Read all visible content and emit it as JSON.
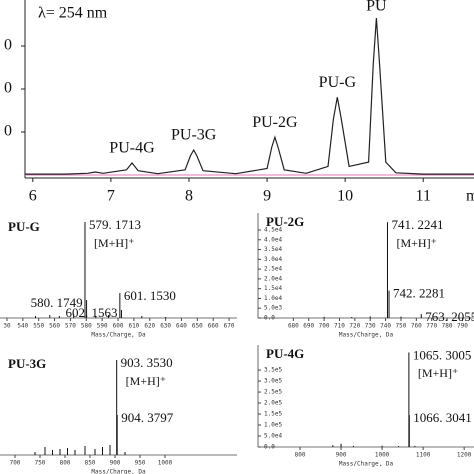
{
  "chart_data": [
    {
      "type": "line",
      "annotation": "λ= 254 nm",
      "x_label": "m",
      "x": [
        5.9,
        6.4,
        6.7,
        6.8,
        6.9,
        7.2,
        7.27,
        7.35,
        7.6,
        7.95,
        8.02,
        8.06,
        8.1,
        8.18,
        8.6,
        9.0,
        9.06,
        9.1,
        9.14,
        9.22,
        9.5,
        9.78,
        9.85,
        9.9,
        9.95,
        10.05,
        10.3,
        10.36,
        10.4,
        10.44,
        10.52,
        10.65,
        11.0,
        11.65
      ],
      "values": [
        2,
        2,
        4,
        7,
        4,
        12,
        28,
        10,
        3,
        12,
        45,
        58,
        45,
        10,
        3,
        15,
        65,
        88,
        65,
        12,
        4,
        20,
        130,
        181,
        130,
        20,
        30,
        260,
        365,
        260,
        30,
        5,
        2,
        2
      ],
      "color": "#222222",
      "baseline_color": "#e07ab8",
      "xlim": [
        5.9,
        11.65
      ],
      "ylim": [
        -7,
        407
      ],
      "xticks": [
        6,
        7,
        8,
        9,
        10,
        11
      ],
      "yticks": [
        {
          "value": 100,
          "label": "0"
        },
        {
          "value": 200,
          "label": "0"
        },
        {
          "value": 300,
          "label": "0"
        }
      ],
      "annotations": [
        {
          "text": "PU-4G",
          "x": 7.27
        },
        {
          "text": "PU-3G",
          "x": 8.06
        },
        {
          "text": "PU-2G",
          "x": 9.1
        },
        {
          "text": "PU-G",
          "x": 9.9
        },
        {
          "text": "PU",
          "x": 10.4
        }
      ]
    },
    {
      "type": "spectrum",
      "title": "PU-G",
      "annotation": "[M+H]⁺",
      "x_label": "Mass/Charge, Da",
      "color": "#111111",
      "x": [
        548,
        557,
        563,
        572,
        579.1713,
        580.1749,
        586,
        594,
        601.153,
        602.1563,
        615,
        630
      ],
      "values": [
        2,
        3,
        2,
        4,
        96,
        18,
        2,
        3,
        25,
        8,
        2,
        1
      ],
      "peak_labels": [
        null,
        null,
        null,
        null,
        "579. 1713",
        "580. 1749",
        null,
        null,
        "601. 1530",
        "602. 1563",
        null,
        null
      ],
      "xlim": [
        525.6,
        675
      ],
      "ylim": [
        0,
        100
      ],
      "xticks": [
        {
          "value": 530,
          "label": "30"
        },
        540,
        550,
        560,
        570,
        580,
        590,
        600,
        610,
        620,
        630,
        640,
        650,
        660,
        670
      ]
    },
    {
      "type": "spectrum",
      "title": "PU-2G",
      "annotation": "[M+H]⁺",
      "x_label": "Mass/Charge, Da",
      "color": "#111111",
      "x": [
        700,
        718,
        730,
        741.2241,
        742.2281,
        750,
        763.2055
      ],
      "values": [
        600,
        500,
        800,
        49000,
        14000,
        700,
        2000
      ],
      "peak_labels": [
        null,
        null,
        null,
        "741. 2241",
        "742. 2281",
        null,
        "763. 2055"
      ],
      "xlim": [
        657,
        797.5
      ],
      "ylim": [
        0,
        53700
      ],
      "xticks": [
        680,
        690,
        700,
        710,
        720,
        730,
        740,
        750,
        760,
        770,
        780,
        790
      ],
      "yticks": [
        {
          "value": 0,
          "label": "0.0"
        },
        {
          "value": 5000,
          "label": "5.0e3"
        },
        {
          "value": 10000,
          "label": "1.0e4"
        },
        {
          "value": 15000,
          "label": "1.5e4"
        },
        {
          "value": 20000,
          "label": "2.0e4"
        },
        {
          "value": 25000,
          "label": "2.5e4"
        },
        {
          "value": 30000,
          "label": "3.0e4"
        },
        {
          "value": 35000,
          "label": "3.5e4"
        },
        {
          "value": 40000,
          "label": "4.0e4"
        },
        {
          "value": 45000,
          "label": "4.5e4"
        }
      ]
    },
    {
      "type": "spectrum",
      "title": "PU-3G",
      "annotation": "[M+H]⁺",
      "x_label": "Mass/Charge, Da",
      "color": "#111111",
      "x": [
        740,
        760,
        775,
        790,
        805,
        820,
        840,
        860,
        875,
        890,
        903.353,
        904.3797,
        920
      ],
      "values": [
        3,
        8,
        5,
        6,
        7,
        5,
        9,
        6,
        8,
        10,
        95,
        40,
        3
      ],
      "peak_labels": [
        null,
        null,
        null,
        null,
        null,
        null,
        null,
        null,
        null,
        null,
        "903. 3530",
        "904. 3797",
        null
      ],
      "xlim": [
        670,
        1144
      ],
      "ylim": [
        0,
        100
      ],
      "xticks": [
        700,
        750,
        800,
        850,
        900,
        950,
        1000
      ]
    },
    {
      "type": "spectrum",
      "title": "PU-4G",
      "annotation": "[M+H]⁺",
      "x_label": "Mass/Charge, Da",
      "color": "#111111",
      "x": [
        880,
        900,
        930,
        1000,
        1040,
        1065.3005,
        1066.3041,
        1080
      ],
      "values": [
        8000,
        15000,
        5000,
        6000,
        4000,
        430000,
        145000,
        5000
      ],
      "peak_labels": [
        null,
        null,
        null,
        null,
        null,
        "1065. 3005",
        "1066. 3041",
        null
      ],
      "xlim": [
        697.6,
        1224
      ],
      "ylim": [
        0,
        464000
      ],
      "xticks": [
        800,
        900,
        1000,
        1100,
        1200
      ],
      "yticks": [
        {
          "value": 0,
          "label": "0.0"
        },
        {
          "value": 50000,
          "label": "5.0e4"
        },
        {
          "value": 100000,
          "label": "1.0e5"
        },
        {
          "value": 150000,
          "label": "1.5e5"
        },
        {
          "value": 200000,
          "label": "2.0e5"
        },
        {
          "value": 250000,
          "label": "2.5e5"
        },
        {
          "value": 300000,
          "label": "3.0e5"
        },
        {
          "value": 350000,
          "label": "3.5e5"
        }
      ]
    }
  ]
}
